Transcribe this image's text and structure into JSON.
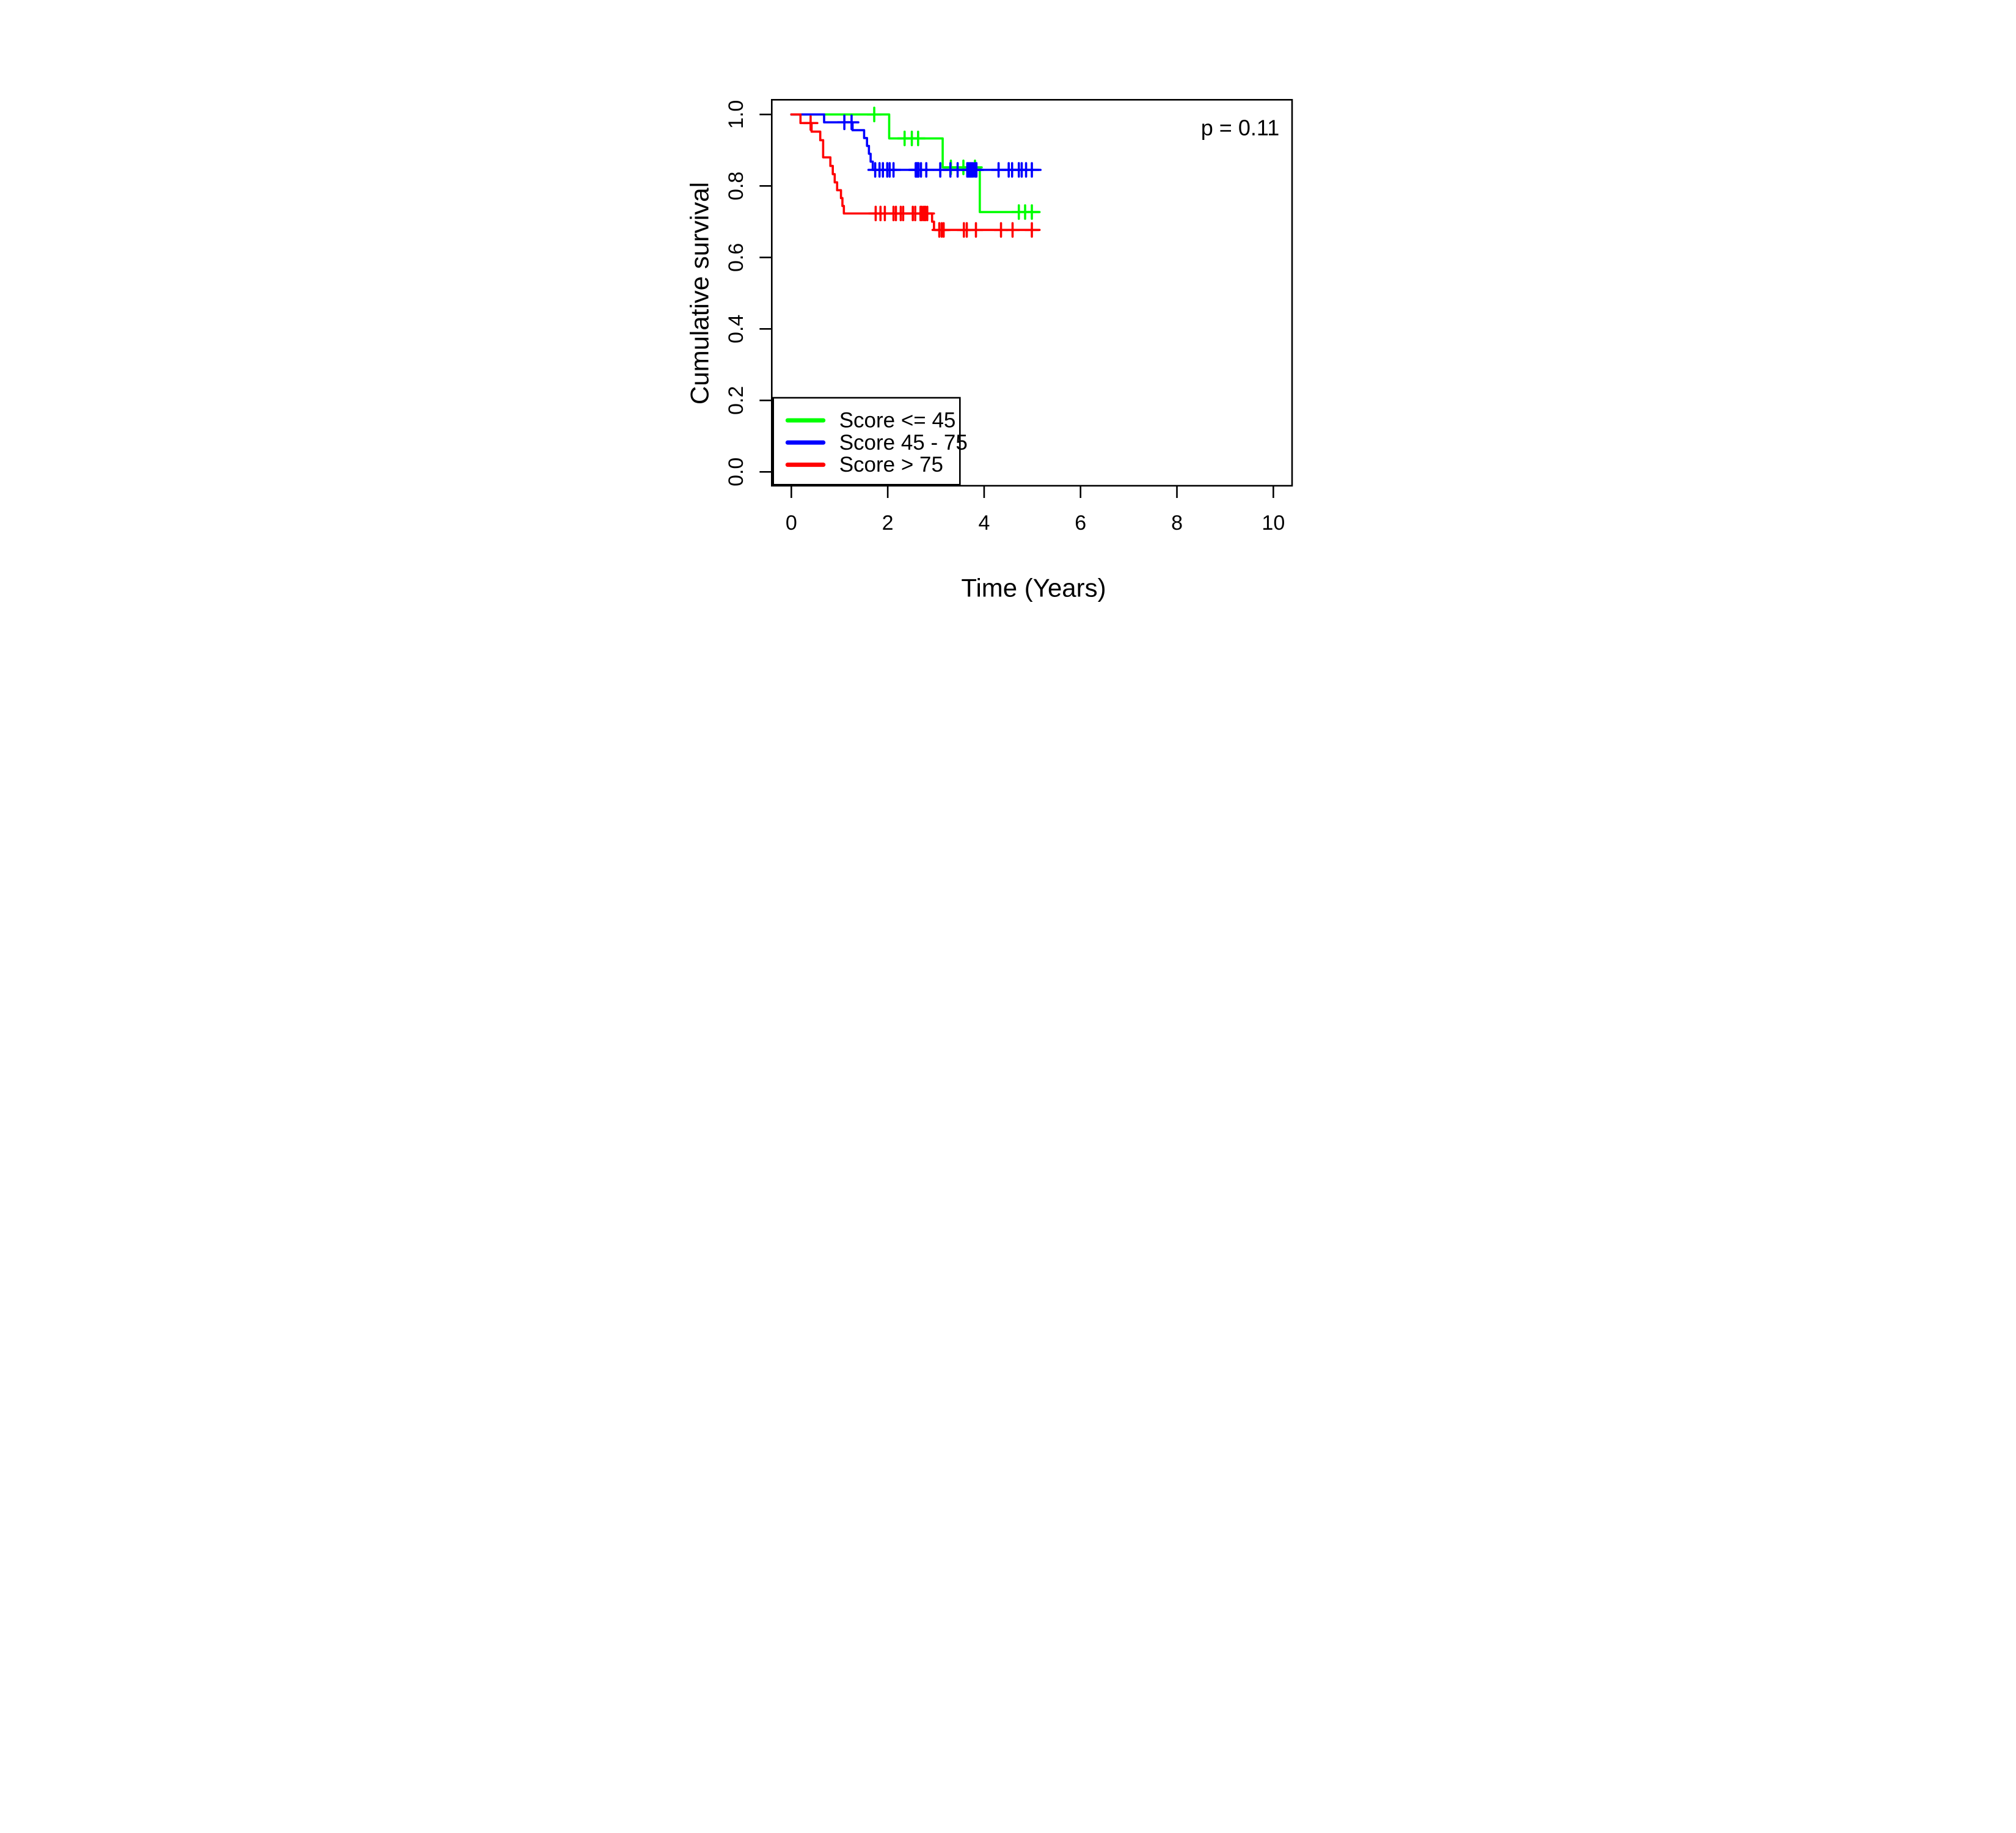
{
  "chart_data": {
    "type": "line",
    "subtype": "kaplan-meier-step-curves",
    "title": "",
    "xlabel": "Time (Years)",
    "ylabel": "Cumulative survival",
    "annotation": "p = 0.11",
    "p_value": 0.11,
    "xlim": [
      0,
      10
    ],
    "ylim": [
      0.0,
      1.0
    ],
    "grid": false,
    "legend_position": "bottom-left",
    "x_ticks": [
      {
        "v": 0,
        "label": "0"
      },
      {
        "v": 2,
        "label": "2"
      },
      {
        "v": 4,
        "label": "4"
      },
      {
        "v": 6,
        "label": "6"
      },
      {
        "v": 8,
        "label": "8"
      },
      {
        "v": 10,
        "label": "10"
      }
    ],
    "y_ticks": [
      {
        "v": 0.0,
        "label": "0.0"
      },
      {
        "v": 0.2,
        "label": "0.2"
      },
      {
        "v": 0.4,
        "label": "0.4"
      },
      {
        "v": 0.6,
        "label": "0.6"
      },
      {
        "v": 0.8,
        "label": "0.8"
      },
      {
        "v": 1.0,
        "label": "1.0"
      }
    ],
    "series": [
      {
        "name": "Score <= 45",
        "color": "#00ff00",
        "end_time": 5.15,
        "steps": [
          [
            0,
            1.0
          ],
          [
            2.03,
            0.933
          ],
          [
            3.14,
            0.852
          ],
          [
            3.91,
            0.727
          ]
        ],
        "censor_marks": [
          [
            1.72,
            1.0
          ],
          [
            2.35,
            0.933
          ],
          [
            2.5,
            0.933
          ],
          [
            2.63,
            0.933
          ],
          [
            3.31,
            0.852
          ],
          [
            3.57,
            0.852
          ],
          [
            3.81,
            0.852
          ],
          [
            4.72,
            0.727
          ],
          [
            4.85,
            0.727
          ],
          [
            4.99,
            0.727
          ]
        ]
      },
      {
        "name": "Score 45 - 75",
        "color": "#0000ff",
        "end_time": 5.17,
        "steps": [
          [
            0,
            1.0
          ],
          [
            0.68,
            0.978
          ],
          [
            1.27,
            0.956
          ],
          [
            1.51,
            0.934
          ],
          [
            1.57,
            0.912
          ],
          [
            1.61,
            0.89
          ],
          [
            1.645,
            0.868
          ],
          [
            1.69,
            0.845
          ]
        ],
        "censor_marks": [
          [
            1.1,
            0.978
          ],
          [
            1.25,
            0.978
          ],
          [
            1.74,
            0.845
          ],
          [
            1.83,
            0.845
          ],
          [
            1.9,
            0.845
          ],
          [
            1.99,
            0.845
          ],
          [
            2.04,
            0.845
          ],
          [
            2.12,
            0.845
          ],
          [
            2.58,
            0.845
          ],
          [
            2.6,
            0.845
          ],
          [
            2.62,
            0.845
          ],
          [
            2.64,
            0.845
          ],
          [
            2.69,
            0.845
          ],
          [
            2.8,
            0.845
          ],
          [
            3.09,
            0.845
          ],
          [
            3.3,
            0.845
          ],
          [
            3.45,
            0.845
          ],
          [
            3.65,
            0.845
          ],
          [
            3.68,
            0.845
          ],
          [
            3.71,
            0.845
          ],
          [
            3.74,
            0.845
          ],
          [
            3.77,
            0.845
          ],
          [
            3.81,
            0.845
          ],
          [
            3.84,
            0.845
          ],
          [
            4.3,
            0.845
          ],
          [
            4.51,
            0.845
          ],
          [
            4.58,
            0.845
          ],
          [
            4.72,
            0.845
          ],
          [
            4.78,
            0.845
          ],
          [
            4.87,
            0.845
          ],
          [
            4.99,
            0.845
          ]
        ]
      },
      {
        "name": "Score > 75",
        "color": "#ff0000",
        "end_time": 5.15,
        "steps": [
          [
            0,
            1.0
          ],
          [
            0.19,
            0.976
          ],
          [
            0.42,
            0.952
          ],
          [
            0.6,
            0.928
          ],
          [
            0.66,
            0.88
          ],
          [
            0.81,
            0.856
          ],
          [
            0.86,
            0.833
          ],
          [
            0.9,
            0.81
          ],
          [
            0.95,
            0.788
          ],
          [
            1.03,
            0.766
          ],
          [
            1.06,
            0.744
          ],
          [
            1.09,
            0.723
          ],
          [
            2.92,
            0.7
          ],
          [
            2.96,
            0.677
          ]
        ],
        "censor_marks": [
          [
            0.4,
            0.976
          ],
          [
            1.75,
            0.723
          ],
          [
            1.85,
            0.723
          ],
          [
            1.94,
            0.723
          ],
          [
            2.12,
            0.723
          ],
          [
            2.17,
            0.723
          ],
          [
            2.27,
            0.723
          ],
          [
            2.32,
            0.723
          ],
          [
            2.52,
            0.723
          ],
          [
            2.57,
            0.723
          ],
          [
            2.68,
            0.723
          ],
          [
            2.71,
            0.723
          ],
          [
            2.75,
            0.723
          ],
          [
            2.78,
            0.723
          ],
          [
            2.82,
            0.723
          ],
          [
            3.07,
            0.677
          ],
          [
            3.12,
            0.677
          ],
          [
            3.16,
            0.677
          ],
          [
            3.58,
            0.677
          ],
          [
            3.64,
            0.677
          ],
          [
            3.83,
            0.677
          ],
          [
            4.35,
            0.677
          ],
          [
            4.59,
            0.677
          ],
          [
            4.99,
            0.677
          ]
        ]
      }
    ]
  }
}
